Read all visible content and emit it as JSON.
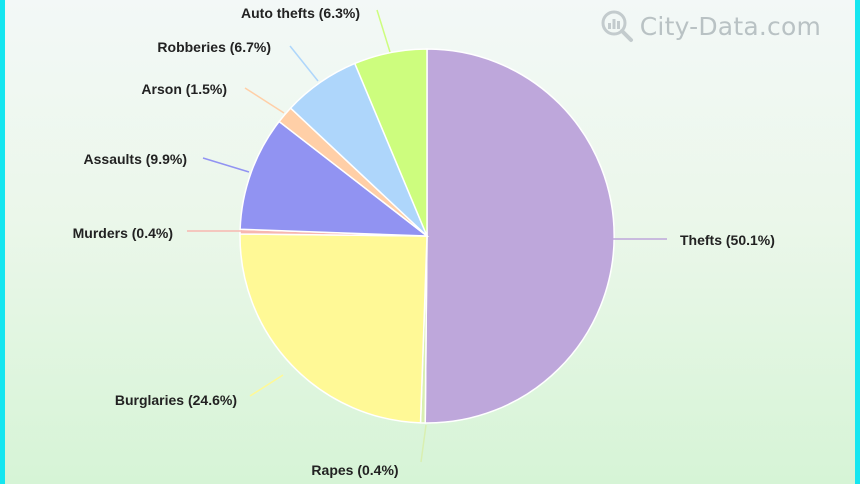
{
  "watermark": {
    "text": "City-Data.com",
    "icon": "magnifier-chart-icon"
  },
  "chart_data": {
    "type": "pie",
    "title": "",
    "start": "top",
    "direction": "clockwise",
    "slices": [
      {
        "id": "thefts",
        "label": "Thefts (50.1%)",
        "value": 50.1,
        "color": "#bea7db"
      },
      {
        "id": "rapes",
        "label": "Rapes (0.4%)",
        "value": 0.4,
        "color": "#d9efb1"
      },
      {
        "id": "burglaries",
        "label": "Burglaries (24.6%)",
        "value": 24.6,
        "color": "#fff996"
      },
      {
        "id": "murders",
        "label": "Murders (0.4%)",
        "value": 0.4,
        "color": "#f7b7b0"
      },
      {
        "id": "assaults",
        "label": "Assaults (9.9%)",
        "value": 9.9,
        "color": "#9193f2"
      },
      {
        "id": "arson",
        "label": "Arson (1.5%)",
        "value": 1.5,
        "color": "#ffcfa7"
      },
      {
        "id": "robberies",
        "label": "Robberies (6.7%)",
        "value": 6.7,
        "color": "#aed6fb"
      },
      {
        "id": "auto-thefts",
        "label": "Auto thefts (6.3%)",
        "value": 6.3,
        "color": "#cdfd7e"
      }
    ]
  }
}
